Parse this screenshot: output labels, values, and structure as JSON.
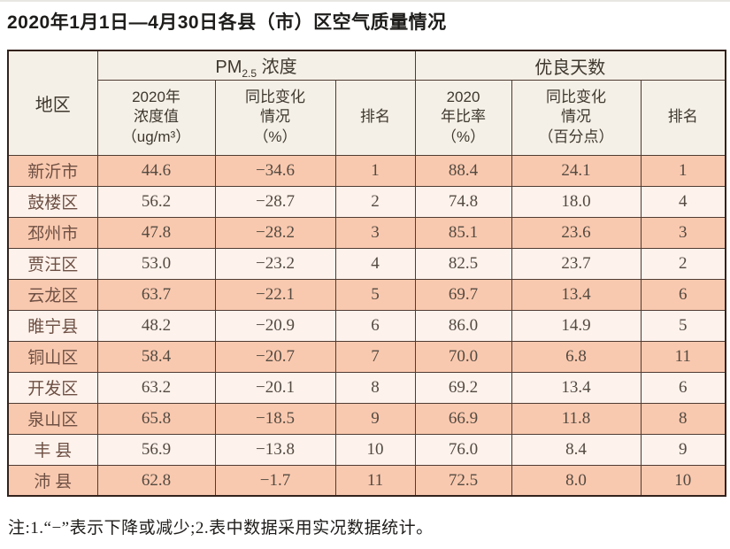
{
  "page": {
    "title": "2020年1月1日—4月30日各县（市）区空气质量情况",
    "note": "注:1.“−”表示下降或减少;2.表中数据采用实况数据统计。"
  },
  "colors": {
    "row_odd_bg": "#f9c9af",
    "row_even_bg": "#fdf2ec",
    "header_bg": "#f5f0e7",
    "border": "#4f3b32",
    "border_outer": "#33221c"
  },
  "table": {
    "corner_header": "地区",
    "pm_group": {
      "prefix": "PM",
      "sub": "2.5",
      "suffix": " 浓度"
    },
    "days_group": "优良天数",
    "sub_headers": {
      "pm_value": "2020年\n浓度值\n（ug/m³）",
      "pm_change": "同比变化\n情况\n（%）",
      "pm_rank": "排名",
      "days_ratio": "2020\n年比率\n（%）",
      "days_change": "同比变化\n情况\n（百分点）",
      "days_rank": "排名"
    },
    "column_keys": [
      "region",
      "pm_value",
      "pm_change",
      "pm_rank",
      "days_ratio",
      "days_change",
      "days_rank"
    ],
    "rows": [
      {
        "region": "新沂市",
        "pm_value": "44.6",
        "pm_change": "−34.6",
        "pm_rank": "1",
        "days_ratio": "88.4",
        "days_change": "24.1",
        "days_rank": "1"
      },
      {
        "region": "鼓楼区",
        "pm_value": "56.2",
        "pm_change": "−28.7",
        "pm_rank": "2",
        "days_ratio": "74.8",
        "days_change": "18.0",
        "days_rank": "4"
      },
      {
        "region": "邳州市",
        "pm_value": "47.8",
        "pm_change": "−28.2",
        "pm_rank": "3",
        "days_ratio": "85.1",
        "days_change": "23.6",
        "days_rank": "3"
      },
      {
        "region": "贾汪区",
        "pm_value": "53.0",
        "pm_change": "−23.2",
        "pm_rank": "4",
        "days_ratio": "82.5",
        "days_change": "23.7",
        "days_rank": "2"
      },
      {
        "region": "云龙区",
        "pm_value": "63.7",
        "pm_change": "−22.1",
        "pm_rank": "5",
        "days_ratio": "69.7",
        "days_change": "13.4",
        "days_rank": "6"
      },
      {
        "region": "睢宁县",
        "pm_value": "48.2",
        "pm_change": "−20.9",
        "pm_rank": "6",
        "days_ratio": "86.0",
        "days_change": "14.9",
        "days_rank": "5"
      },
      {
        "region": "铜山区",
        "pm_value": "58.4",
        "pm_change": "−20.7",
        "pm_rank": "7",
        "days_ratio": "70.0",
        "days_change": "6.8",
        "days_rank": "11"
      },
      {
        "region": "开发区",
        "pm_value": "63.2",
        "pm_change": "−20.1",
        "pm_rank": "8",
        "days_ratio": "69.2",
        "days_change": "13.4",
        "days_rank": "6"
      },
      {
        "region": "泉山区",
        "pm_value": "65.8",
        "pm_change": "−18.5",
        "pm_rank": "9",
        "days_ratio": "66.9",
        "days_change": "11.8",
        "days_rank": "8"
      },
      {
        "region": "丰 县",
        "pm_value": "56.9",
        "pm_change": "−13.8",
        "pm_rank": "10",
        "days_ratio": "76.0",
        "days_change": "8.4",
        "days_rank": "9"
      },
      {
        "region": "沛 县",
        "pm_value": "62.8",
        "pm_change": "−1.7",
        "pm_rank": "11",
        "days_ratio": "72.5",
        "days_change": "8.0",
        "days_rank": "10"
      }
    ]
  }
}
